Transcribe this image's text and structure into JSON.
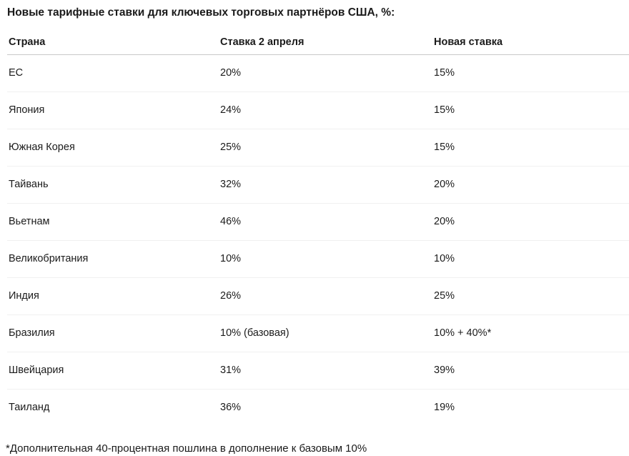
{
  "page": {
    "title": "Новые тарифные ставки для ключевых торговых партнёров США, %:",
    "footnote": "*Дополнительная 40-процентная пошлина в дополнение к базовым 10%"
  },
  "table": {
    "columns": [
      "Страна",
      "Ставка 2 апреля",
      "Новая ставка"
    ],
    "rows": [
      {
        "country": "ЕС",
        "april_rate": "20%",
        "new_rate": "15%"
      },
      {
        "country": "Япония",
        "april_rate": "24%",
        "new_rate": "15%"
      },
      {
        "country": "Южная Корея",
        "april_rate": "25%",
        "new_rate": "15%"
      },
      {
        "country": "Тайвань",
        "april_rate": "32%",
        "new_rate": "20%"
      },
      {
        "country": "Вьетнам",
        "april_rate": "46%",
        "new_rate": "20%"
      },
      {
        "country": "Великобритания",
        "april_rate": "10%",
        "new_rate": "10%"
      },
      {
        "country": "Индия",
        "april_rate": "26%",
        "new_rate": "25%"
      },
      {
        "country": "Бразилия",
        "april_rate": "10% (базовая)",
        "new_rate": "10% + 40%*"
      },
      {
        "country": "Швейцария",
        "april_rate": "31%",
        "new_rate": "39%"
      },
      {
        "country": "Таиланд",
        "april_rate": "36%",
        "new_rate": "19%"
      }
    ]
  },
  "colors": {
    "text": "#1b1b1b",
    "header_border": "#c9c9c9",
    "row_border": "#f0f0f0",
    "background": "#ffffff"
  }
}
